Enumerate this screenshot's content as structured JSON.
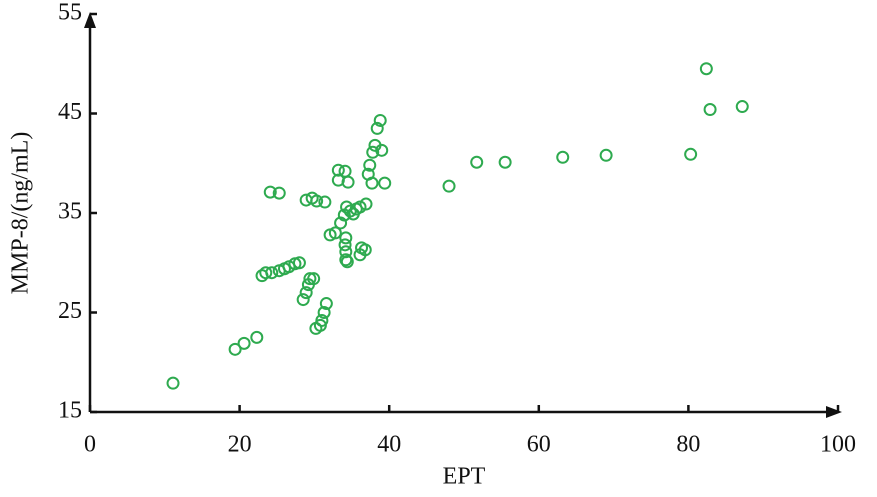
{
  "chart_data": {
    "type": "scatter",
    "xlabel": "EPT",
    "ylabel": "MMP-8/(ng/mL)",
    "xlim": [
      0,
      100
    ],
    "xticks": [
      0,
      20,
      40,
      60,
      80,
      100
    ],
    "ylim": [
      15,
      55
    ],
    "yticks": [
      15,
      25,
      35,
      45,
      55
    ],
    "color": "#2eaa4f",
    "x": [
      11.1,
      19.4,
      20.6,
      22.3,
      24.1,
      25.3,
      23.0,
      23.5,
      24.3,
      25.3,
      26.0,
      26.6,
      27.4,
      28.0,
      28.9,
      29.7,
      30.3,
      31.4,
      28.5,
      28.9,
      29.2,
      29.4,
      29.9,
      30.2,
      30.8,
      31.0,
      31.3,
      31.6,
      32.1,
      32.8,
      33.2,
      34.1,
      34.5,
      33.2,
      33.5,
      34.0,
      34.3,
      34.8,
      35.2,
      35.6,
      36.1,
      34.2,
      34.1,
      34.2,
      34.2,
      34.4,
      36.1,
      36.3,
      36.8,
      36.9,
      37.2,
      37.4,
      37.8,
      38.1,
      38.4,
      38.8,
      39.0,
      39.4,
      37.7,
      48.0,
      51.7,
      55.5,
      63.2,
      69.0,
      80.3,
      82.4,
      82.9,
      87.2
    ],
    "values": [
      17.9,
      21.3,
      21.9,
      22.5,
      37.1,
      37.0,
      28.7,
      29.0,
      29.0,
      29.2,
      29.4,
      29.6,
      29.9,
      30.0,
      36.3,
      36.5,
      36.2,
      36.1,
      26.3,
      27.0,
      27.8,
      28.4,
      28.4,
      23.4,
      23.7,
      24.2,
      25.0,
      25.9,
      32.8,
      33.0,
      39.3,
      39.2,
      38.1,
      38.3,
      34.0,
      34.8,
      35.6,
      35.2,
      34.9,
      35.4,
      35.6,
      32.5,
      31.8,
      31.1,
      30.3,
      30.1,
      30.8,
      31.5,
      31.3,
      35.9,
      38.9,
      39.8,
      41.1,
      41.8,
      43.5,
      44.3,
      41.3,
      38.0,
      38.0,
      37.7,
      40.1,
      40.1,
      40.6,
      40.8,
      40.9,
      49.5,
      45.4,
      45.7
    ]
  }
}
